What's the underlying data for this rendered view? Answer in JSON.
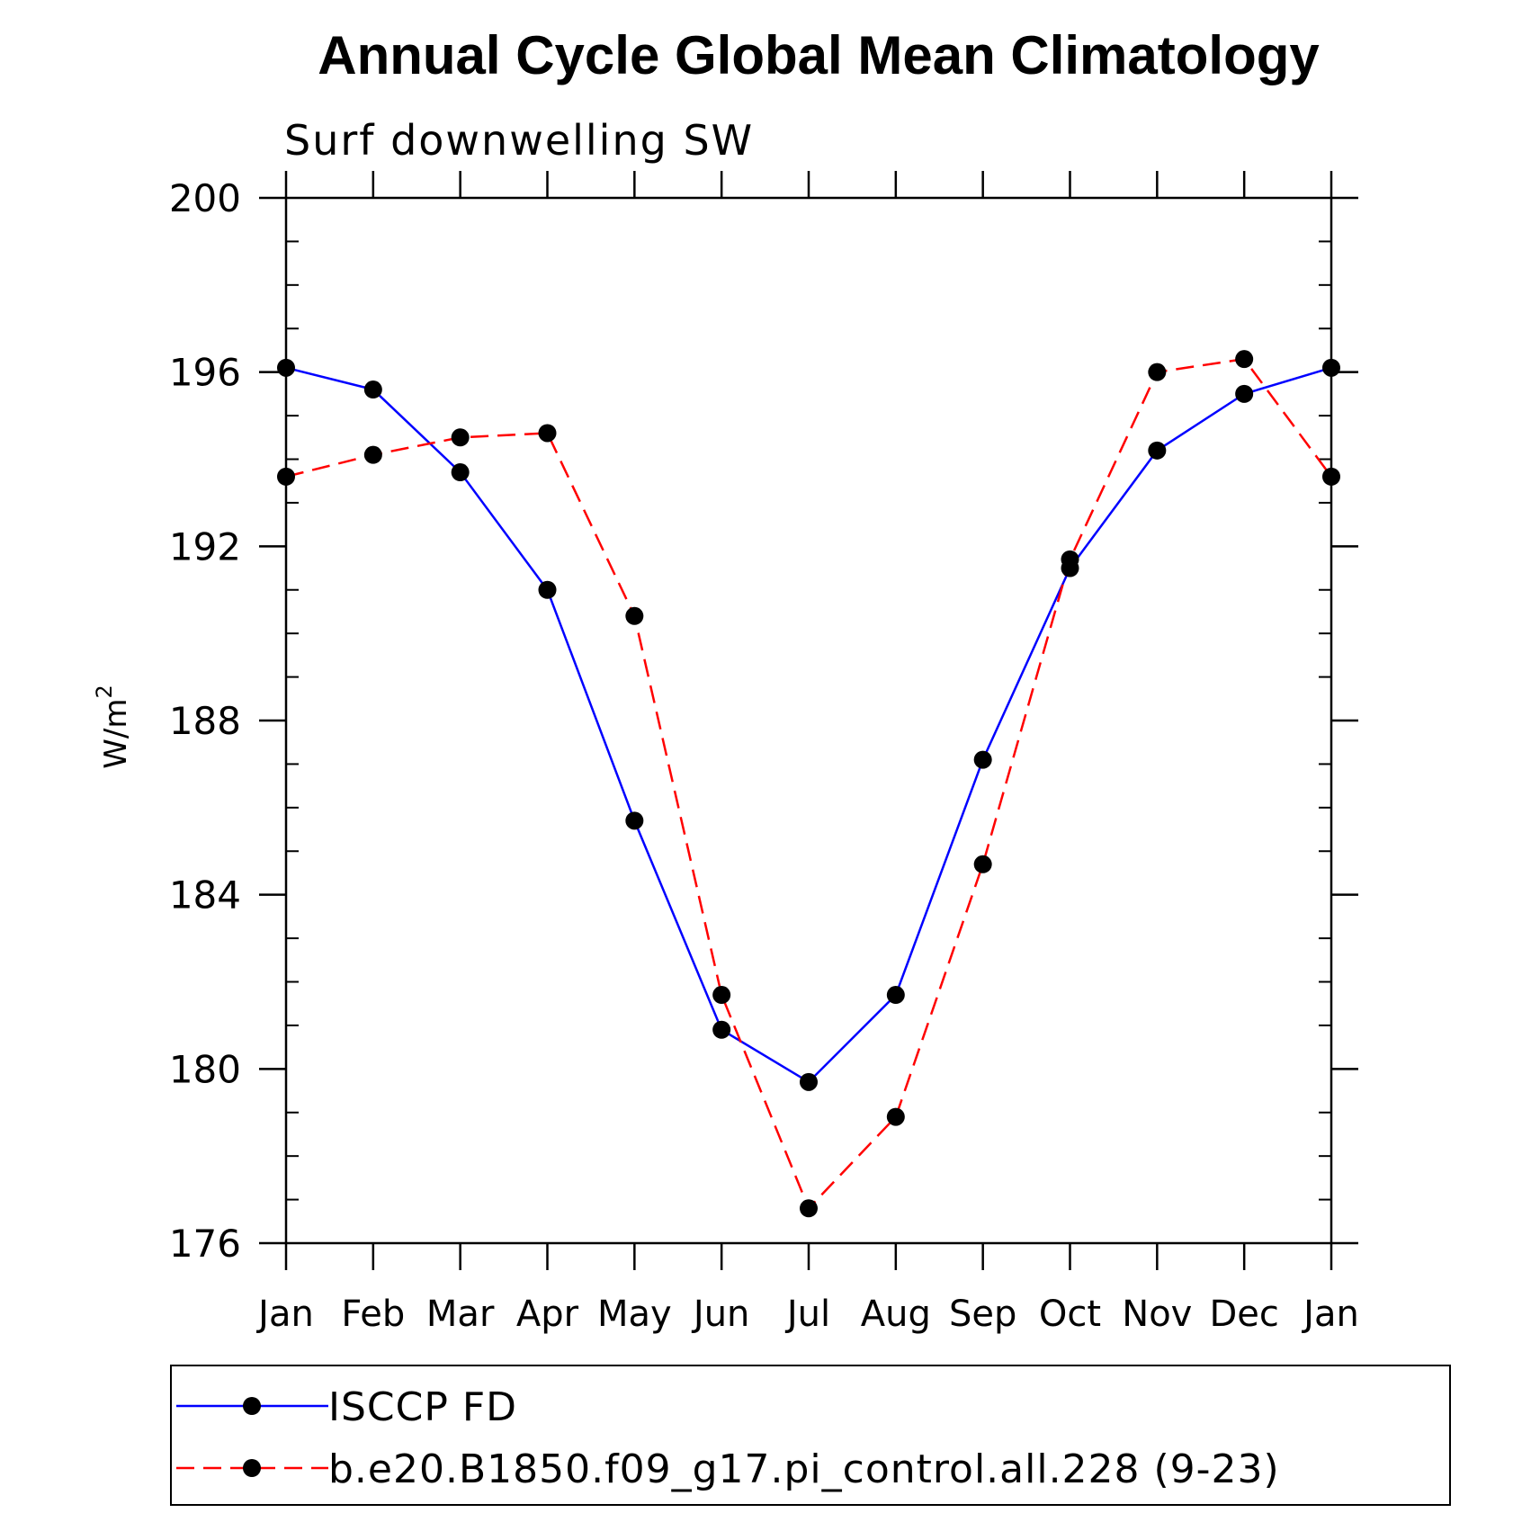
{
  "chart_data": {
    "type": "line",
    "title": "Annual Cycle Global Mean Climatology",
    "subtitle": "Surf downwelling SW",
    "ylabel": "W/m",
    "ylabel_superscript": "2",
    "xlabel": "",
    "categories": [
      "Jan",
      "Feb",
      "Mar",
      "Apr",
      "May",
      "Jun",
      "Jul",
      "Aug",
      "Sep",
      "Oct",
      "Nov",
      "Dec",
      "Jan"
    ],
    "ylim": [
      176,
      200
    ],
    "yticks": [
      176,
      180,
      184,
      188,
      192,
      196,
      200
    ],
    "y_minor_step": 1,
    "grid": false,
    "legend_position": "bottom",
    "series": [
      {
        "name": "ISCCP FD",
        "color": "#0000ff",
        "dash": "solid",
        "marker": "circle",
        "values": [
          196.1,
          195.6,
          193.7,
          191.0,
          185.7,
          180.9,
          179.7,
          181.7,
          187.1,
          191.5,
          194.2,
          195.5,
          196.1
        ]
      },
      {
        "name": "b.e20.B1850.f09_g17.pi_control.all.228 (9-23)",
        "color": "#ff0000",
        "dash": "dashed",
        "marker": "circle",
        "values": [
          193.6,
          194.1,
          194.5,
          194.6,
          190.4,
          181.7,
          176.8,
          178.9,
          184.7,
          191.7,
          196.0,
          196.3,
          193.6
        ]
      }
    ]
  }
}
